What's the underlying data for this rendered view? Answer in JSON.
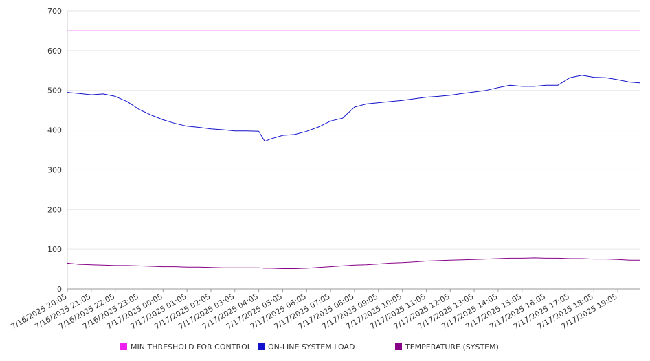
{
  "chart_data": {
    "type": "line",
    "title": "",
    "xlabel": "",
    "ylabel": "",
    "ylim": [
      0,
      700
    ],
    "yticks": [
      0,
      100,
      200,
      300,
      400,
      500,
      600,
      700
    ],
    "grid": true,
    "legend_position": "bottom",
    "x_tick_labels": [
      "7/16/2025 20:05",
      "7/16/2025 21:05",
      "7/16/2025 22:05",
      "7/16/2025 23:05",
      "7/17/2025 00:05",
      "7/17/2025 01:05",
      "7/17/2025 02:05",
      "7/17/2025 03:05",
      "7/17/2025 04:05",
      "7/17/2025 05:05",
      "7/17/2025 06:05",
      "7/17/2025 07:05",
      "7/17/2025 08:05",
      "7/17/2025 09:05",
      "7/17/2025 10:05",
      "7/17/2025 11:05",
      "7/17/2025 12:05",
      "7/17/2025 13:05",
      "7/17/2025 14:05",
      "7/17/2025 15:05",
      "7/17/2025 16:05",
      "7/17/2025 17:05",
      "7/17/2025 18:05",
      "7/17/2025 19:05"
    ],
    "x": [
      "7/16/2025 20:05",
      "7/16/2025 20:35",
      "7/16/2025 21:05",
      "7/16/2025 21:35",
      "7/16/2025 22:05",
      "7/16/2025 22:35",
      "7/16/2025 23:05",
      "7/16/2025 23:35",
      "7/17/2025 00:05",
      "7/17/2025 00:35",
      "7/17/2025 01:05",
      "7/17/2025 01:35",
      "7/17/2025 02:05",
      "7/17/2025 02:35",
      "7/17/2025 03:05",
      "7/17/2025 03:35",
      "7/17/2025 04:05",
      "7/17/2025 04:20",
      "7/17/2025 04:35",
      "7/17/2025 05:05",
      "7/17/2025 05:35",
      "7/17/2025 06:05",
      "7/17/2025 06:35",
      "7/17/2025 07:05",
      "7/17/2025 07:35",
      "7/17/2025 08:05",
      "7/17/2025 08:35",
      "7/17/2025 09:05",
      "7/17/2025 09:35",
      "7/17/2025 10:05",
      "7/17/2025 10:35",
      "7/17/2025 11:05",
      "7/17/2025 11:35",
      "7/17/2025 12:05",
      "7/17/2025 12:35",
      "7/17/2025 13:05",
      "7/17/2025 13:35",
      "7/17/2025 14:05",
      "7/17/2025 14:35",
      "7/17/2025 15:05",
      "7/17/2025 15:35",
      "7/17/2025 16:05",
      "7/17/2025 16:35",
      "7/17/2025 17:05",
      "7/17/2025 17:35",
      "7/17/2025 18:05",
      "7/17/2025 18:35",
      "7/17/2025 19:05",
      "7/17/2025 19:35",
      "7/17/2025 20:00"
    ],
    "series": [
      {
        "name": "MIN THRESHOLD FOR CONTROL",
        "color": "#ee22ee",
        "values": [
          652,
          652,
          652,
          652,
          652,
          652,
          652,
          652,
          652,
          652,
          652,
          652,
          652,
          652,
          652,
          652,
          652,
          652,
          652,
          652,
          652,
          652,
          652,
          652,
          652,
          652,
          652,
          652,
          652,
          652,
          652,
          652,
          652,
          652,
          652,
          652,
          652,
          652,
          652,
          652,
          652,
          652,
          652,
          652,
          652,
          652,
          652,
          652,
          652,
          652
        ]
      },
      {
        "name": "ON-LINE SYSTEM LOAD",
        "color": "#1111cc",
        "values": [
          495,
          492,
          489,
          491,
          485,
          472,
          452,
          438,
          426,
          417,
          410,
          407,
          403,
          401,
          398,
          398,
          397,
          372,
          378,
          387,
          389,
          397,
          408,
          423,
          430,
          458,
          466,
          469,
          472,
          475,
          479,
          483,
          485,
          488,
          492,
          496,
          500,
          507,
          513,
          510,
          510,
          513,
          513,
          532,
          538,
          533,
          532,
          527,
          521,
          519
        ]
      },
      {
        "name": "TEMPERATURE (SYSTEM)",
        "color": "#880088",
        "values": [
          65,
          62,
          61,
          60,
          59,
          59,
          58,
          57,
          56,
          56,
          55,
          55,
          54,
          53,
          53,
          53,
          53,
          52,
          52,
          51,
          51,
          52,
          54,
          56,
          58,
          60,
          61,
          63,
          65,
          66,
          68,
          70,
          71,
          72,
          73,
          74,
          75,
          76,
          77,
          77,
          78,
          77,
          77,
          76,
          76,
          75,
          75,
          74,
          72,
          72
        ]
      }
    ]
  }
}
